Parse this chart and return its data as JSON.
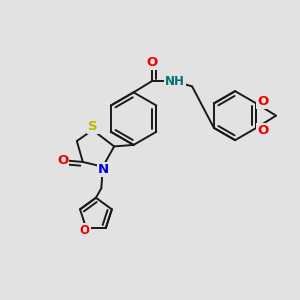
{
  "background_color": "#e2e2e2",
  "bond_color": "#1a1a1a",
  "bond_width": 1.4,
  "atom_colors": {
    "S": "#b8b800",
    "N": "#0000ee",
    "O": "#ee0000",
    "NH": "#007070"
  },
  "font_size": 8.5,
  "figsize": [
    3.0,
    3.0
  ],
  "dpi": 100,
  "xlim": [
    0,
    10
  ],
  "ylim": [
    0,
    10
  ]
}
